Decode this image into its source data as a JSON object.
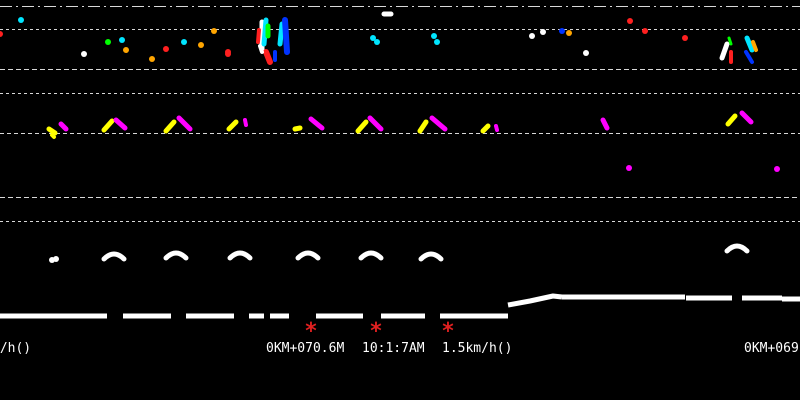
{
  "readouts": {
    "left_partial": "m/h()",
    "mileage": "0KM+070.6M",
    "time": "10:1:7AM",
    "speed": "1.5km/h()",
    "right_partial": "0KM+069"
  },
  "colors": {
    "background": "#000000",
    "guide_line": "#d8d8d8",
    "profile": "#ffffff",
    "marker": "#e02020",
    "dot_palette": [
      "#ffffff",
      "#ff2020",
      "#00ff00",
      "#00e5ff",
      "#ffa500",
      "#ffff00",
      "#ff00ff",
      "#0033ff"
    ]
  },
  "icons": {
    "marker": "red-asterisk-icon"
  }
}
